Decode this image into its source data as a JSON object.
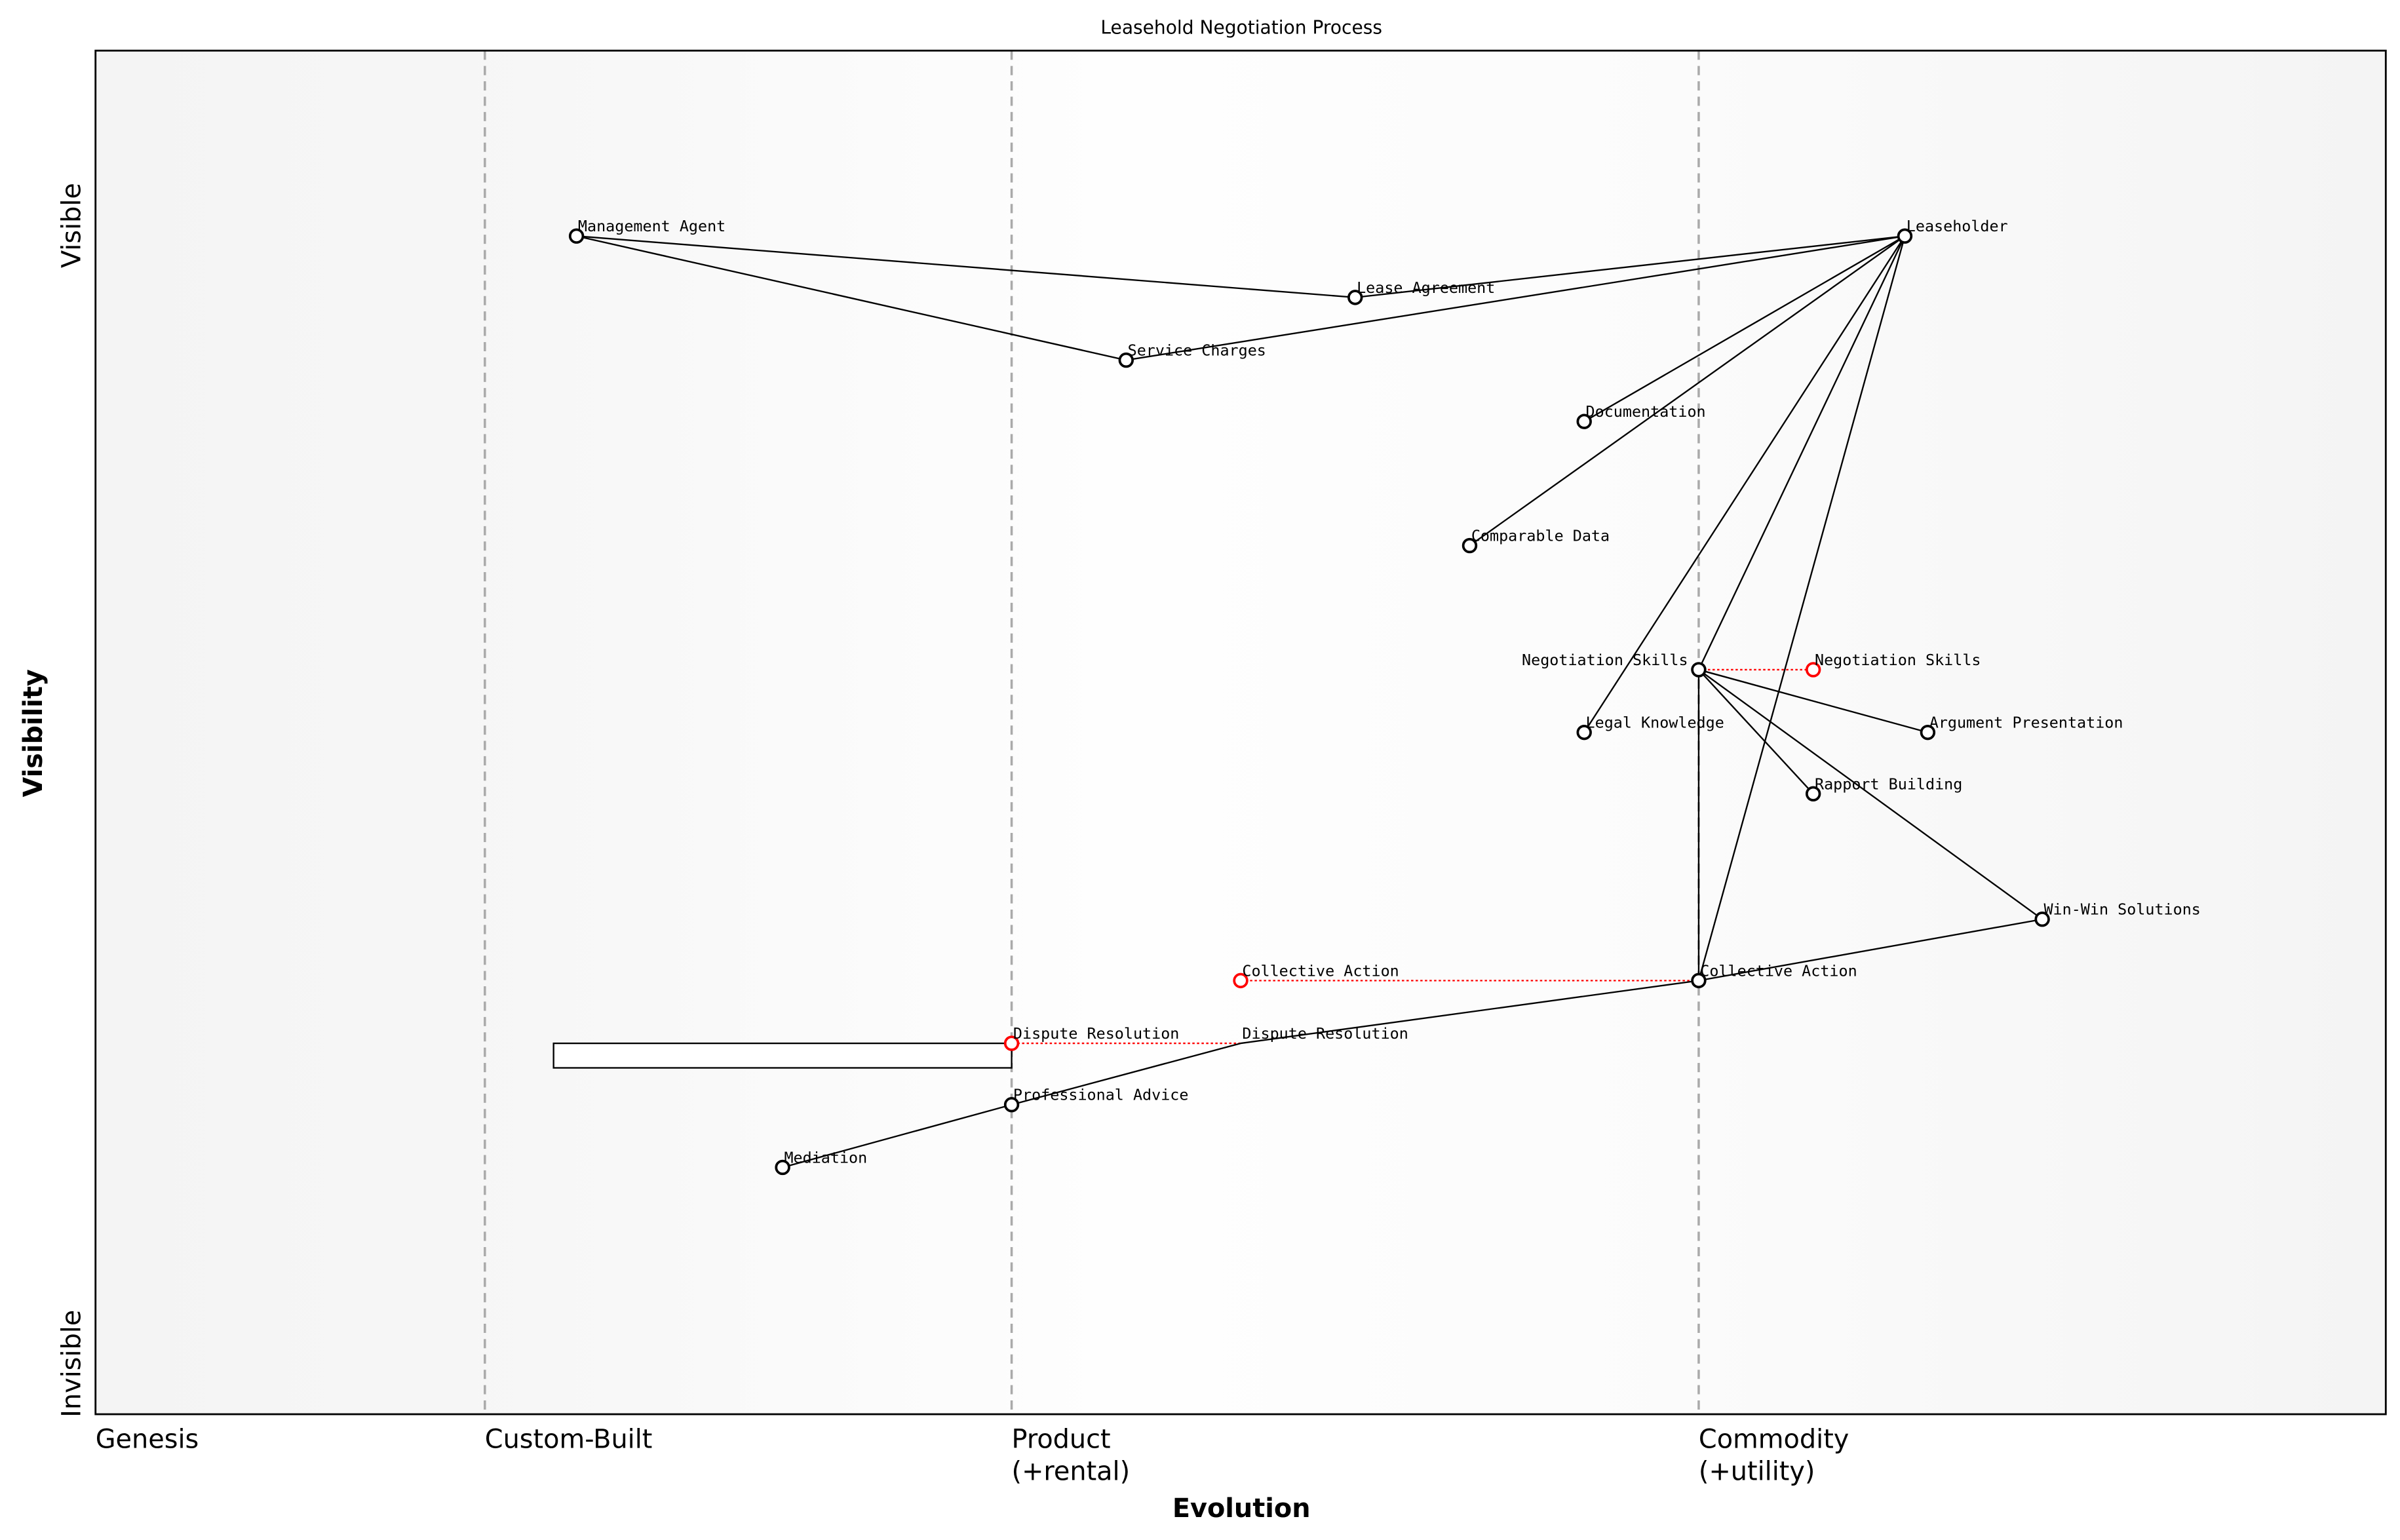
{
  "title": "Leasehold Negotiation Process",
  "xlabel": "Evolution",
  "ylabel": "Visibility",
  "y_top_label": "Visible",
  "y_bottom_label": "Invisible",
  "stages": [
    {
      "label": "Genesis",
      "evolution": 0.0
    },
    {
      "label": "Custom-Built",
      "evolution": 0.17
    },
    {
      "label": "Product",
      "sub": "(+rental)",
      "evolution": 0.4
    },
    {
      "label": "Commodity",
      "sub": "(+utility)",
      "evolution": 0.7
    }
  ],
  "components": [
    {
      "id": "management_agent",
      "label": "Management Agent",
      "evolution": 0.21,
      "visibility": 0.864
    },
    {
      "id": "lease_agreement",
      "label": "Lease Agreement",
      "evolution": 0.55,
      "visibility": 0.819
    },
    {
      "id": "service_charges",
      "label": "Service Charges",
      "evolution": 0.45,
      "visibility": 0.773
    },
    {
      "id": "leaseholder",
      "label": "Leaseholder",
      "evolution": 0.79,
      "visibility": 0.864
    },
    {
      "id": "documentation",
      "label": "Documentation",
      "evolution": 0.65,
      "visibility": 0.728
    },
    {
      "id": "comparable_data",
      "label": "Comparable Data",
      "evolution": 0.6,
      "visibility": 0.637
    },
    {
      "id": "negotiation_skills",
      "label": "Negotiation Skills",
      "evolution": 0.7,
      "visibility": 0.546
    },
    {
      "id": "legal_knowledge",
      "label": "Legal Knowledge",
      "evolution": 0.65,
      "visibility": 0.5
    },
    {
      "id": "argument_presentation",
      "label": "Argument Presentation",
      "evolution": 0.8,
      "visibility": 0.5
    },
    {
      "id": "rapport_building",
      "label": "Rapport Building",
      "evolution": 0.75,
      "visibility": 0.455
    },
    {
      "id": "win_win_solutions",
      "label": "Win-Win Solutions",
      "evolution": 0.85,
      "visibility": 0.363
    },
    {
      "id": "collective_action",
      "label": "Collective Action",
      "evolution": 0.7,
      "visibility": 0.318
    },
    {
      "id": "dispute_resolution",
      "label": "Dispute Resolution",
      "evolution": 0.5,
      "visibility": 0.272,
      "marker": false
    },
    {
      "id": "professional_advice",
      "label": "Professional Advice",
      "evolution": 0.4,
      "visibility": 0.227
    },
    {
      "id": "mediation",
      "label": "Mediation",
      "evolution": 0.3,
      "visibility": 0.181
    }
  ],
  "links": [
    [
      "leaseholder",
      "lease_agreement"
    ],
    [
      "lease_agreement",
      "management_agent"
    ],
    [
      "management_agent",
      "service_charges"
    ],
    [
      "service_charges",
      "leaseholder"
    ],
    [
      "leaseholder",
      "documentation"
    ],
    [
      "leaseholder",
      "comparable_data"
    ],
    [
      "leaseholder",
      "legal_knowledge"
    ],
    [
      "leaseholder",
      "negotiation_skills"
    ],
    [
      "leaseholder",
      "collective_action"
    ],
    [
      "negotiation_skills",
      "argument_presentation"
    ],
    [
      "negotiation_skills",
      "rapport_building"
    ],
    [
      "negotiation_skills",
      "win_win_solutions"
    ],
    [
      "negotiation_skills",
      "collective_action"
    ],
    [
      "win_win_solutions",
      "collective_action"
    ],
    [
      "collective_action",
      "dispute_resolution"
    ],
    [
      "dispute_resolution",
      "professional_advice"
    ],
    [
      "professional_advice",
      "mediation"
    ]
  ],
  "evolutions": [
    {
      "from": "negotiation_skills",
      "label": "Negotiation Skills",
      "evolution": 0.75,
      "visibility": 0.546
    },
    {
      "from": "collective_action",
      "label": "Collective Action",
      "evolution": 0.5,
      "visibility": 0.318
    },
    {
      "from": "dispute_resolution",
      "label": "Dispute Resolution",
      "evolution": 0.4,
      "visibility": 0.272
    }
  ],
  "pipelines": [
    {
      "component": "dispute_resolution",
      "evolution_start": 0.2,
      "evolution_end": 0.4
    }
  ],
  "colors": {
    "evolved": "#ff0000",
    "link": "#000000",
    "stage_line": "#aaaaaa",
    "background_edge": "#f5f5f5"
  }
}
